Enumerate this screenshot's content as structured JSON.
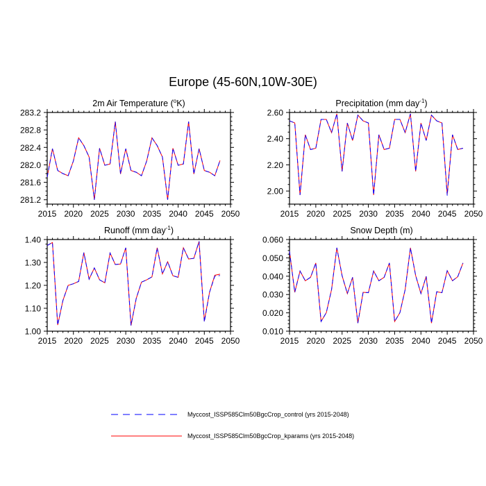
{
  "title": "Europe (45-60N,10W-30E)",
  "legend": [
    {
      "label": "Myccost_ISSP585Clm50BgcCrop_control (yrs 2015-2048)",
      "color": "#0000ff",
      "dash": true
    },
    {
      "label": "Myccost_ISSP585Clm50BgcCrop_kparams (yrs 2015-2048)",
      "color": "#ff0000",
      "dash": false
    }
  ],
  "chart_data": [
    {
      "type": "line",
      "title": "2m Air Temperature (",
      "title_sup": "o",
      "title_tail": "K)",
      "xlim": [
        2015,
        2050
      ],
      "ylim": [
        281.1,
        283.2
      ],
      "xticks": [
        "2015",
        "2020",
        "2025",
        "2030",
        "2035",
        "2040",
        "2045",
        "2050"
      ],
      "yticks": [
        "281.2",
        "281.6",
        "282.0",
        "282.4",
        "282.8",
        "283.2"
      ],
      "ymajor": 0.4,
      "yminor": 0.1,
      "ybase": 281.2,
      "ydigits": 1,
      "x_start": 2015,
      "series": [
        {
          "name": "control",
          "values": [
            281.72,
            282.37,
            281.87,
            281.8,
            281.75,
            282.09,
            282.62,
            282.44,
            282.18,
            281.2,
            282.38,
            281.99,
            282.02,
            282.99,
            281.79,
            282.37,
            281.87,
            281.83,
            281.75,
            282.09,
            282.62,
            282.44,
            282.18,
            281.2,
            282.38,
            281.99,
            282.02,
            282.99,
            281.79,
            282.37,
            281.87,
            281.83,
            281.75,
            282.1
          ]
        },
        {
          "name": "kparams",
          "values": [
            281.72,
            282.37,
            281.87,
            281.8,
            281.75,
            282.09,
            282.62,
            282.44,
            282.18,
            281.2,
            282.38,
            281.99,
            282.02,
            282.99,
            281.79,
            282.37,
            281.87,
            281.83,
            281.75,
            282.09,
            282.62,
            282.44,
            282.18,
            281.2,
            282.38,
            281.99,
            282.02,
            282.99,
            281.79,
            282.37,
            281.87,
            281.83,
            281.75,
            282.1
          ]
        }
      ]
    },
    {
      "type": "line",
      "title": "Precipitation (mm day",
      "title_sup": "-1",
      "title_tail": ")",
      "xlim": [
        2015,
        2050
      ],
      "ylim": [
        1.9,
        2.6
      ],
      "xticks": [
        "2015",
        "2020",
        "2025",
        "2030",
        "2035",
        "2040",
        "2045",
        "2050"
      ],
      "yticks": [
        "2.00",
        "2.20",
        "2.40",
        "2.60"
      ],
      "ymajor": 0.2,
      "yminor": 0.05,
      "ybase": 2.0,
      "ydigits": 2,
      "x_start": 2015,
      "series": [
        {
          "name": "control",
          "values": [
            2.536,
            2.52,
            1.97,
            2.43,
            2.317,
            2.327,
            2.547,
            2.547,
            2.446,
            2.59,
            2.15,
            2.519,
            2.386,
            2.58,
            2.536,
            2.52,
            1.97,
            2.43,
            2.317,
            2.327,
            2.547,
            2.547,
            2.446,
            2.59,
            2.15,
            2.519,
            2.386,
            2.58,
            2.536,
            2.52,
            1.965,
            2.43,
            2.317,
            2.327
          ]
        },
        {
          "name": "kparams",
          "values": [
            2.536,
            2.52,
            1.97,
            2.43,
            2.317,
            2.327,
            2.547,
            2.547,
            2.446,
            2.59,
            2.15,
            2.519,
            2.386,
            2.58,
            2.536,
            2.52,
            1.97,
            2.43,
            2.317,
            2.327,
            2.547,
            2.547,
            2.446,
            2.59,
            2.15,
            2.519,
            2.386,
            2.58,
            2.536,
            2.52,
            1.975,
            2.43,
            2.317,
            2.327
          ]
        }
      ]
    },
    {
      "type": "line",
      "title": "Runoff (mm day",
      "title_sup": "-1",
      "title_tail": ")",
      "xlim": [
        2015,
        2050
      ],
      "ylim": [
        1.0,
        1.4
      ],
      "xticks": [
        "2015",
        "2020",
        "2025",
        "2030",
        "2035",
        "2040",
        "2045",
        "2050"
      ],
      "yticks": [
        "1.00",
        "1.10",
        "1.20",
        "1.30",
        "1.40"
      ],
      "ymajor": 0.1,
      "yminor": 0.02,
      "ybase": 1.0,
      "ydigits": 2,
      "x_start": 2015,
      "series": [
        {
          "name": "control",
          "values": [
            1.374,
            1.387,
            1.027,
            1.134,
            1.2,
            1.207,
            1.217,
            1.343,
            1.227,
            1.276,
            1.224,
            1.211,
            1.341,
            1.291,
            1.293,
            1.364,
            1.025,
            1.143,
            1.214,
            1.224,
            1.237,
            1.364,
            1.25,
            1.303,
            1.242,
            1.235,
            1.364,
            1.315,
            1.318,
            1.392,
            1.04,
            1.17,
            1.24,
            1.243
          ]
        },
        {
          "name": "kparams",
          "values": [
            1.374,
            1.387,
            1.027,
            1.134,
            1.2,
            1.207,
            1.217,
            1.343,
            1.227,
            1.276,
            1.224,
            1.211,
            1.341,
            1.291,
            1.293,
            1.364,
            1.025,
            1.143,
            1.214,
            1.224,
            1.237,
            1.364,
            1.25,
            1.303,
            1.242,
            1.235,
            1.364,
            1.315,
            1.318,
            1.392,
            1.045,
            1.17,
            1.244,
            1.249
          ]
        }
      ]
    },
    {
      "type": "line",
      "title": "Snow Depth (m)",
      "title_sup": "",
      "title_tail": "",
      "xlim": [
        2015,
        2050
      ],
      "ylim": [
        0.01,
        0.06
      ],
      "xticks": [
        "2015",
        "2020",
        "2025",
        "2030",
        "2035",
        "2040",
        "2045",
        "2050"
      ],
      "yticks": [
        "0.010",
        "0.020",
        "0.030",
        "0.040",
        "0.050",
        "0.060"
      ],
      "ymajor": 0.01,
      "yminor": 0.002,
      "ybase": 0.01,
      "ydigits": 3,
      "x_start": 2015,
      "series": [
        {
          "name": "control",
          "values": [
            0.0536,
            0.0312,
            0.0428,
            0.0375,
            0.0394,
            0.0472,
            0.0153,
            0.0201,
            0.0327,
            0.0555,
            0.0403,
            0.0305,
            0.0394,
            0.0144,
            0.0312,
            0.031,
            0.0428,
            0.0375,
            0.0394,
            0.0472,
            0.0153,
            0.0201,
            0.0327,
            0.0555,
            0.0403,
            0.0305,
            0.0399,
            0.0144,
            0.0315,
            0.031,
            0.043,
            0.0375,
            0.0397,
            0.0472
          ]
        },
        {
          "name": "kparams",
          "values": [
            0.0536,
            0.0312,
            0.0428,
            0.0375,
            0.0394,
            0.0472,
            0.0153,
            0.0201,
            0.0327,
            0.0555,
            0.0403,
            0.0305,
            0.0394,
            0.0144,
            0.0312,
            0.031,
            0.0428,
            0.0375,
            0.0394,
            0.0472,
            0.0153,
            0.0201,
            0.0327,
            0.0555,
            0.0403,
            0.0305,
            0.0399,
            0.0144,
            0.0315,
            0.031,
            0.043,
            0.0375,
            0.0397,
            0.0472
          ]
        }
      ]
    }
  ]
}
